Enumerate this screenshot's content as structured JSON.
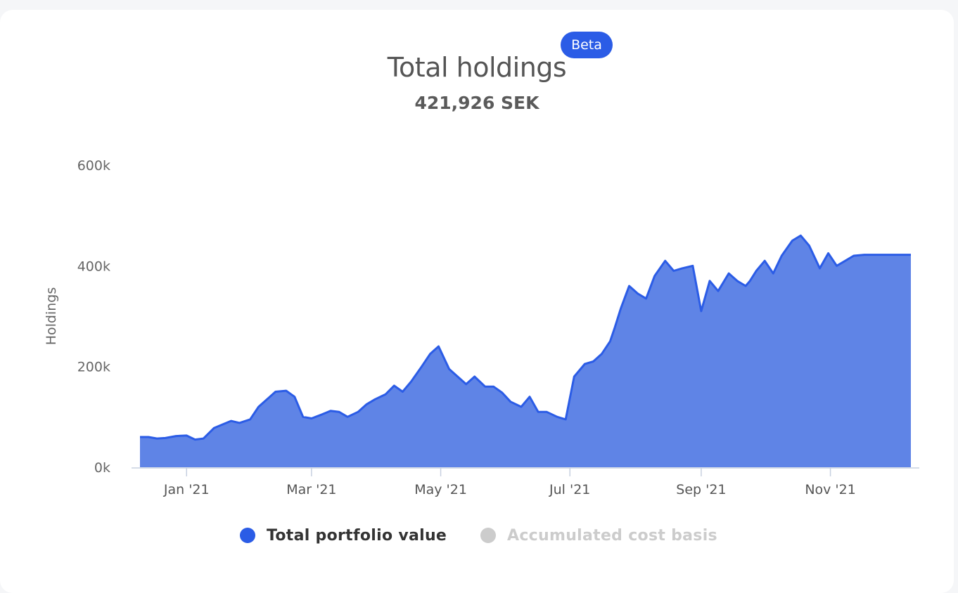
{
  "header": {
    "title": "Total holdings",
    "badge": "Beta",
    "value": "421,926 SEK"
  },
  "colors": {
    "accent": "#2b5ce6",
    "area_fill": "#5f84e6",
    "muted": "#cccccc"
  },
  "chart_data": {
    "type": "area",
    "title": "Total holdings",
    "subtitle": "421,926 SEK",
    "ylabel": "Holdings",
    "xlabel": "",
    "ylim": [
      0,
      600000
    ],
    "y_ticks": [
      0,
      200000,
      400000,
      600000
    ],
    "y_tick_labels": [
      "0k",
      "200k",
      "400k",
      "600k"
    ],
    "x_ticks": [
      "2021-01-01",
      "2021-03-01",
      "2021-05-01",
      "2021-07-01",
      "2021-09-01",
      "2021-11-01"
    ],
    "x_tick_labels": [
      "Jan '21",
      "Mar '21",
      "May '21",
      "Jul '21",
      "Sep '21",
      "Nov '21"
    ],
    "xlim": [
      "2020-12-10",
      "2021-12-09"
    ],
    "legend_placement": "bottom",
    "series": [
      {
        "name": "Total portfolio value",
        "visible": true,
        "x": [
          "2020-12-10",
          "2020-12-14",
          "2020-12-18",
          "2020-12-22",
          "2020-12-27",
          "2021-01-01",
          "2021-01-05",
          "2021-01-09",
          "2021-01-14",
          "2021-01-18",
          "2021-01-22",
          "2021-01-26",
          "2021-01-31",
          "2021-02-04",
          "2021-02-08",
          "2021-02-12",
          "2021-02-17",
          "2021-02-21",
          "2021-02-25",
          "2021-03-01",
          "2021-03-06",
          "2021-03-10",
          "2021-03-14",
          "2021-03-18",
          "2021-03-23",
          "2021-03-27",
          "2021-03-31",
          "2021-04-05",
          "2021-04-09",
          "2021-04-13",
          "2021-04-17",
          "2021-04-22",
          "2021-04-26",
          "2021-04-30",
          "2021-05-05",
          "2021-05-09",
          "2021-05-13",
          "2021-05-17",
          "2021-05-22",
          "2021-05-26",
          "2021-05-30",
          "2021-06-03",
          "2021-06-08",
          "2021-06-12",
          "2021-06-16",
          "2021-06-20",
          "2021-06-25",
          "2021-06-29",
          "2021-07-03",
          "2021-07-08",
          "2021-07-12",
          "2021-07-16",
          "2021-07-20",
          "2021-07-22",
          "2021-07-25",
          "2021-07-29",
          "2021-08-02",
          "2021-08-06",
          "2021-08-10",
          "2021-08-15",
          "2021-08-19",
          "2021-08-23",
          "2021-08-28",
          "2021-09-01",
          "2021-09-05",
          "2021-09-09",
          "2021-09-14",
          "2021-09-18",
          "2021-09-22",
          "2021-09-24",
          "2021-09-27",
          "2021-10-01",
          "2021-10-05",
          "2021-10-09",
          "2021-10-14",
          "2021-10-18",
          "2021-10-22",
          "2021-10-27",
          "2021-10-31",
          "2021-11-04",
          "2021-11-08",
          "2021-11-12",
          "2021-11-17",
          "2021-11-21",
          "2021-11-25",
          "2021-11-29",
          "2021-12-04",
          "2021-12-09"
        ],
        "values": [
          60000,
          60000,
          57000,
          58000,
          62000,
          63000,
          55000,
          57000,
          78000,
          85000,
          92000,
          88000,
          95000,
          120000,
          135000,
          150000,
          152000,
          140000,
          100000,
          97000,
          105000,
          112000,
          110000,
          100000,
          110000,
          125000,
          135000,
          145000,
          162000,
          150000,
          170000,
          200000,
          225000,
          240000,
          195000,
          180000,
          165000,
          180000,
          160000,
          160000,
          148000,
          130000,
          120000,
          140000,
          110000,
          110000,
          100000,
          95000,
          180000,
          205000,
          210000,
          225000,
          250000,
          275000,
          315000,
          360000,
          345000,
          335000,
          380000,
          410000,
          390000,
          395000,
          400000,
          310000,
          370000,
          350000,
          385000,
          370000,
          360000,
          370000,
          390000,
          410000,
          385000,
          420000,
          450000,
          460000,
          440000,
          395000,
          425000,
          400000,
          410000,
          420000,
          421926,
          421926,
          421926,
          421926,
          421926,
          421926
        ]
      },
      {
        "name": "Accumulated cost basis",
        "visible": false,
        "x": [],
        "values": []
      }
    ]
  },
  "legend": [
    {
      "label": "Total portfolio value",
      "active": true
    },
    {
      "label": "Accumulated cost basis",
      "active": false
    }
  ]
}
